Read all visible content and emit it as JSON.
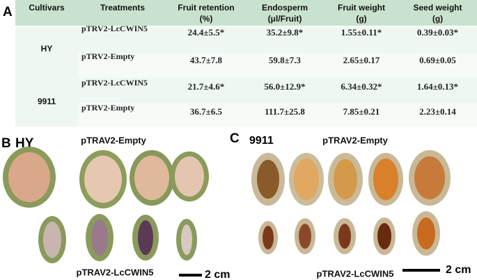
{
  "panels": {
    "a": "A",
    "b": "B",
    "c": "C"
  },
  "table": {
    "header": [
      [
        "Cultivars"
      ],
      [
        "Treatments"
      ],
      [
        "Fruit retention",
        "(%)"
      ],
      [
        "Endosperm",
        "(μl/Fruit)"
      ],
      [
        "Fruit weight",
        "(g)"
      ],
      [
        "Seed weight",
        "(g)"
      ]
    ],
    "groups": [
      {
        "cultivar": "HY",
        "rows": [
          [
            "pTRV2-LcCWIN5",
            "24.4±5.5*",
            "35.2±9.8*",
            "1.55±0.11*",
            "0.39±0.03*"
          ],
          [
            "pTRV2-Empty",
            "43.7±7.8",
            "59.8±7.3",
            "2.65±0.17",
            "0.69±0.05"
          ]
        ]
      },
      {
        "cultivar": "9911",
        "rows": [
          [
            "pTRV2-LcCWIN5",
            "21.7±4.6*",
            "56.0±12.9*",
            "6.34±0.32*",
            "1.64±0.13*"
          ],
          [
            "pTRV2-Empty",
            "36.7±6.5",
            "111.7±25.8",
            "7.85±0.21",
            "2.23±0.14"
          ]
        ]
      }
    ]
  },
  "panel_b": {
    "cultivar": "HY",
    "top_label": "pTRAV2-Empty",
    "bottom_label": "pTRAV2-LcCWIN5",
    "scale": "2 cm"
  },
  "panel_c": {
    "cultivar": "9911",
    "top_label": "pTRAV2-Empty",
    "bottom_label": "pTRAV2-LcCWIN5",
    "scale": "2 cm"
  }
}
